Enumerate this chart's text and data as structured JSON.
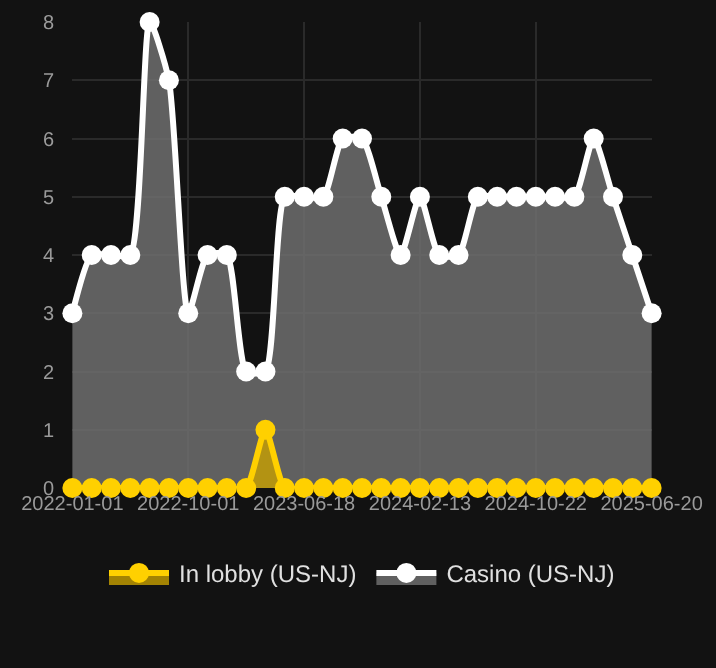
{
  "chart_data": {
    "type": "area",
    "categories": [
      "2022-01-01",
      null,
      null,
      null,
      null,
      null,
      "2022-10-01",
      null,
      null,
      null,
      null,
      null,
      "2023-06-18",
      null,
      null,
      null,
      null,
      null,
      "2024-02-13",
      null,
      null,
      null,
      null,
      null,
      "2024-10-22",
      null,
      null,
      null,
      null,
      null,
      "2025-06-20"
    ],
    "series": [
      {
        "name": "In lobby (US-NJ)",
        "color": "#ffd000",
        "values": [
          0,
          0,
          0,
          0,
          0,
          0,
          0,
          0,
          0,
          0,
          1,
          0,
          0,
          0,
          0,
          0,
          0,
          0,
          0,
          0,
          0,
          0,
          0,
          0,
          0,
          0,
          0,
          0,
          0,
          0,
          0
        ]
      },
      {
        "name": "Casino (US-NJ)",
        "color": "#ffffff",
        "values": [
          3,
          4,
          4,
          4,
          8,
          7,
          3,
          4,
          4,
          2,
          2,
          5,
          5,
          5,
          6,
          6,
          5,
          4,
          5,
          4,
          4,
          5,
          5,
          5,
          5,
          5,
          5,
          6,
          5,
          4,
          3
        ]
      }
    ],
    "ylim": [
      0,
      8
    ],
    "yticks": [
      0,
      1,
      2,
      3,
      4,
      5,
      6,
      7,
      8
    ],
    "grid": true,
    "legend": "bottom",
    "marker": "circle",
    "line_style": "solid"
  }
}
